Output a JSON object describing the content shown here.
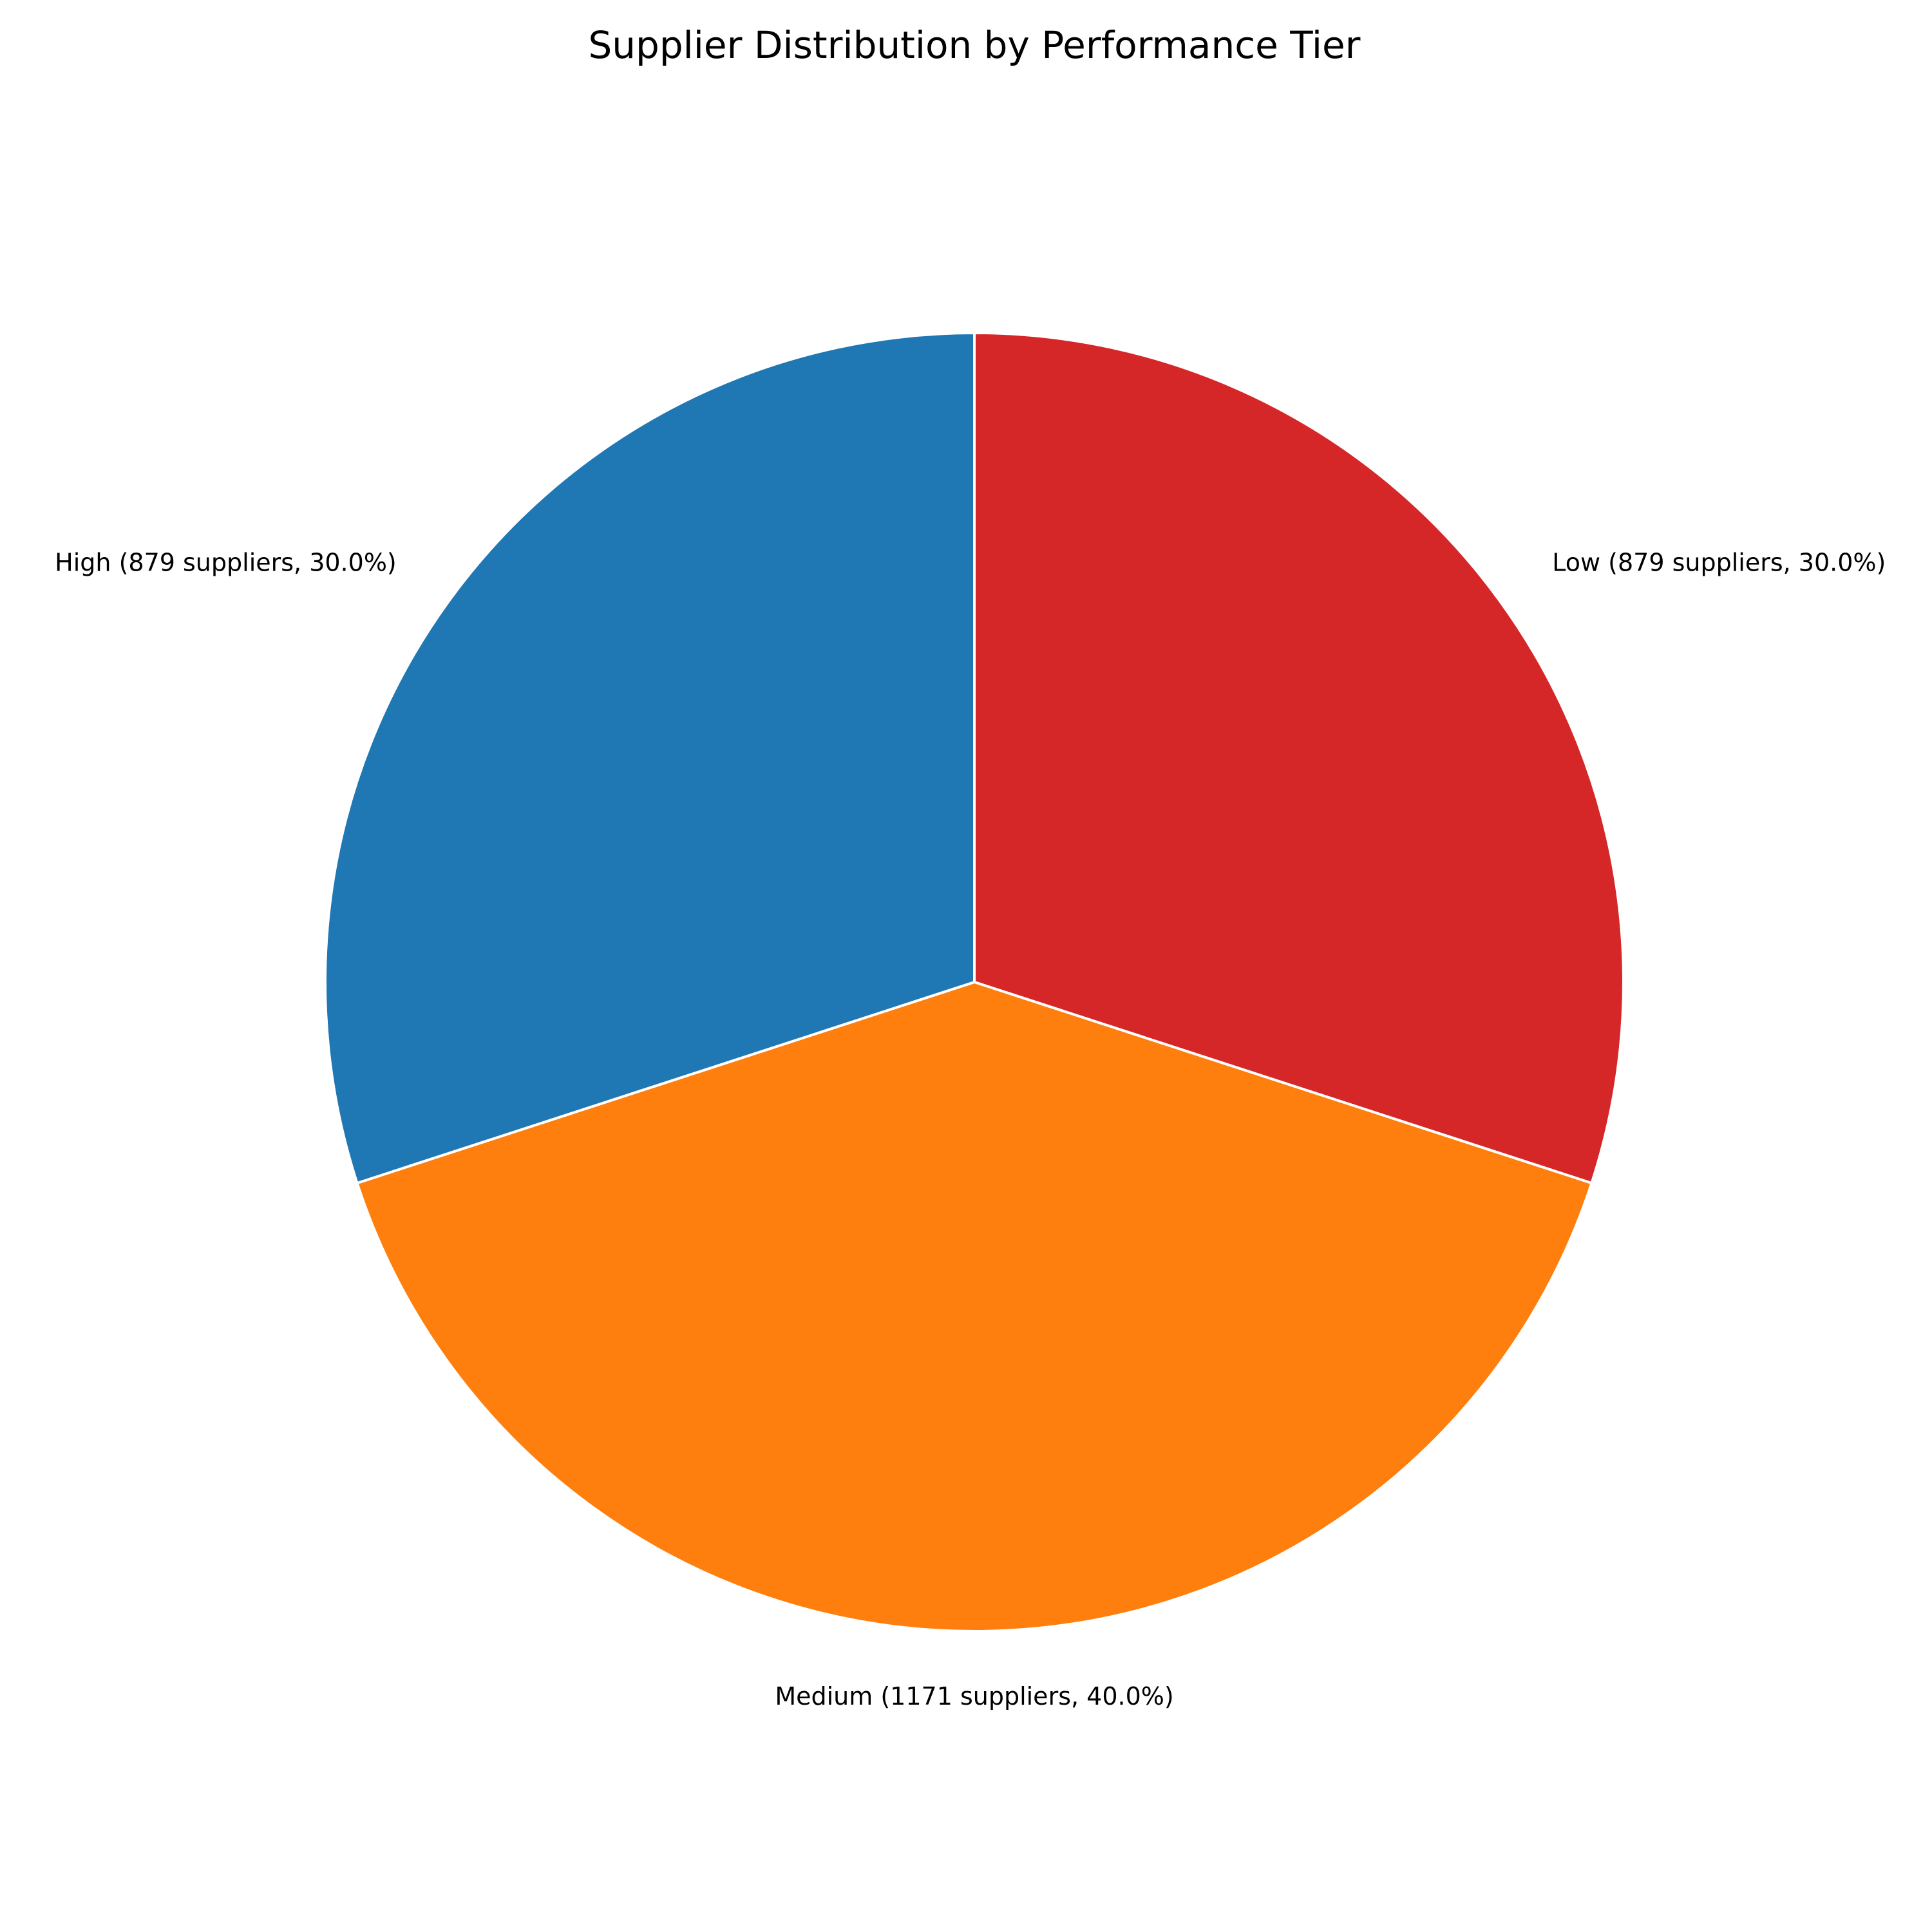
{
  "chart_data": {
    "type": "pie",
    "title": "Supplier Distribution by Performance Tier",
    "start_angle_deg": 90,
    "direction": "clockwise",
    "edge_color": "#ffffff",
    "slices": [
      {
        "category": "Low",
        "value": 879,
        "percent": 30.0,
        "color": "#d62728",
        "label": "Low (879 suppliers, 30.0%)"
      },
      {
        "category": "Medium",
        "value": 1171,
        "percent": 40.0,
        "color": "#ff7f0e",
        "label": "Medium (1171 suppliers, 40.0%)"
      },
      {
        "category": "High",
        "value": 879,
        "percent": 30.0,
        "color": "#1f77b4",
        "label": "High (879 suppliers, 30.0%)"
      }
    ]
  }
}
